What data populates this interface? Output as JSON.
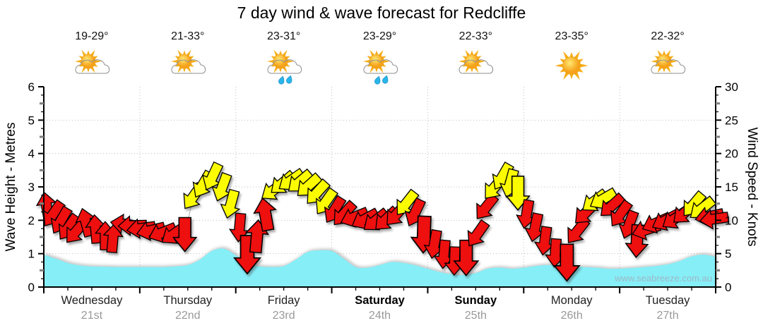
{
  "title": "7 day wind & wave forecast for Redcliffe",
  "watermark": "www.seabreeze.com.au",
  "axes": {
    "left_label": "Wave Height - Metres",
    "right_label": "Wind Speed - Knots",
    "left_ticks": [
      0,
      1,
      2,
      3,
      4,
      5,
      6
    ],
    "right_ticks": [
      0,
      5,
      10,
      15,
      20,
      25,
      30
    ]
  },
  "days": [
    {
      "name": "Wednesday",
      "date": "21st",
      "temp": "19-29°",
      "icon": "partly-cloudy",
      "weekend": false
    },
    {
      "name": "Thursday",
      "date": "22nd",
      "temp": "21-33°",
      "icon": "partly-cloudy",
      "weekend": false
    },
    {
      "name": "Friday",
      "date": "23rd",
      "temp": "23-31°",
      "icon": "showers",
      "weekend": false
    },
    {
      "name": "Saturday",
      "date": "24th",
      "temp": "23-29°",
      "icon": "showers",
      "weekend": true
    },
    {
      "name": "Sunday",
      "date": "25th",
      "temp": "22-33°",
      "icon": "partly-cloudy",
      "weekend": true
    },
    {
      "name": "Monday",
      "date": "26th",
      "temp": "23-35°",
      "icon": "sunny",
      "weekend": false
    },
    {
      "name": "Tuesday",
      "date": "27th",
      "temp": "22-32°",
      "icon": "partly-cloudy",
      "weekend": false
    }
  ],
  "colors": {
    "wave": "#86EEF7",
    "arrow_red": "#EE0F0F",
    "arrow_yellow": "#FCFC00",
    "grid": "#BFBFBF",
    "date_text": "#999999",
    "watermark_text": "#9FB3C0"
  },
  "chart_data": {
    "type": "area+wind-arrows",
    "title": "7 day wind & wave forecast for Redcliffe",
    "x_days": [
      "Wednesday",
      "Thursday",
      "Friday",
      "Saturday",
      "Sunday",
      "Monday",
      "Tuesday"
    ],
    "y_left": {
      "label": "Wave Height - Metres",
      "min": 0,
      "max": 6,
      "tick_step": 1
    },
    "y_right": {
      "label": "Wind Speed - Knots",
      "min": 0,
      "max": 30,
      "tick_step": 5
    },
    "grid": {
      "h_lines_metres": [
        1,
        2,
        3,
        4,
        5
      ],
      "v_lines_at_day_boundaries": true
    },
    "wave_height_m": {
      "interval_days": 0.125,
      "values": [
        0.97,
        0.85,
        0.72,
        0.65,
        0.62,
        0.61,
        0.6,
        0.6,
        0.6,
        0.6,
        0.6,
        0.62,
        0.66,
        0.82,
        1.08,
        1.15,
        0.95,
        0.7,
        0.62,
        0.6,
        0.63,
        0.82,
        1.05,
        1.1,
        1.08,
        0.85,
        0.6,
        0.58,
        0.66,
        0.75,
        0.72,
        0.65,
        0.55,
        0.45,
        0.38,
        0.36,
        0.42,
        0.55,
        0.58,
        0.55,
        0.58,
        0.63,
        0.66,
        0.64,
        0.62,
        0.6,
        0.58,
        0.55,
        0.55,
        0.57,
        0.6,
        0.63,
        0.68,
        0.78,
        0.92,
        0.97,
        0.9
      ]
    },
    "wind_arrows": {
      "format": "[time_days, knots, pointing_dir_deg(0=up,90=right), color, scale(optional)]",
      "points": [
        [
          0.03,
          12.0,
          350,
          "red"
        ],
        [
          0.1,
          11.0,
          215,
          "red"
        ],
        [
          0.18,
          10.0,
          210,
          "red"
        ],
        [
          0.26,
          9.0,
          215,
          "red"
        ],
        [
          0.34,
          8.4,
          220,
          "red"
        ],
        [
          0.44,
          9.6,
          345,
          "red"
        ],
        [
          0.54,
          8.6,
          355,
          "red"
        ],
        [
          0.64,
          7.6,
          0,
          "red"
        ],
        [
          0.72,
          7.2,
          5,
          "red"
        ],
        [
          0.85,
          9.4,
          278,
          "red"
        ],
        [
          0.93,
          9.2,
          268,
          "red"
        ],
        [
          1.02,
          8.8,
          262,
          "red"
        ],
        [
          1.12,
          8.5,
          256,
          "red"
        ],
        [
          1.24,
          8.2,
          248,
          "red"
        ],
        [
          1.36,
          8.0,
          235,
          "red"
        ],
        [
          1.47,
          8.0,
          180,
          "red",
          1.2
        ],
        [
          1.56,
          13.6,
          215,
          "yellow"
        ],
        [
          1.66,
          15.4,
          210,
          "yellow"
        ],
        [
          1.76,
          16.6,
          205,
          "yellow"
        ],
        [
          1.86,
          15.0,
          200,
          "yellow"
        ],
        [
          1.95,
          12.5,
          195,
          "yellow"
        ],
        [
          2.04,
          9.0,
          185,
          "red"
        ],
        [
          2.12,
          5.0,
          180,
          "red",
          1.35
        ],
        [
          2.22,
          7.5,
          5,
          "red",
          1.15
        ],
        [
          2.31,
          10.8,
          350,
          "red",
          1.15
        ],
        [
          2.4,
          14.6,
          235,
          "yellow"
        ],
        [
          2.49,
          15.6,
          230,
          "yellow"
        ],
        [
          2.58,
          16.0,
          235,
          "yellow"
        ],
        [
          2.67,
          15.8,
          230,
          "yellow"
        ],
        [
          2.76,
          15.2,
          228,
          "yellow"
        ],
        [
          2.85,
          14.2,
          222,
          "yellow"
        ],
        [
          2.94,
          12.8,
          215,
          "yellow"
        ],
        [
          3.03,
          11.6,
          212,
          "red"
        ],
        [
          3.13,
          11.0,
          222,
          "red"
        ],
        [
          3.24,
          10.5,
          248,
          "red"
        ],
        [
          3.35,
          10.2,
          242,
          "red"
        ],
        [
          3.46,
          10.0,
          232,
          "red"
        ],
        [
          3.57,
          10.2,
          226,
          "red"
        ],
        [
          3.68,
          11.0,
          222,
          "red"
        ],
        [
          3.78,
          12.6,
          218,
          "yellow"
        ],
        [
          3.87,
          11.2,
          205,
          "red"
        ],
        [
          3.96,
          8.0,
          182,
          "red",
          1.3
        ],
        [
          4.07,
          6.5,
          190,
          "red"
        ],
        [
          4.17,
          5.0,
          185,
          "red"
        ],
        [
          4.28,
          4.0,
          182,
          "red"
        ],
        [
          4.4,
          4.5,
          180,
          "red",
          1.25
        ],
        [
          4.52,
          8.0,
          215,
          "red"
        ],
        [
          4.61,
          12.0,
          218,
          "red"
        ],
        [
          4.7,
          15.0,
          220,
          "yellow"
        ],
        [
          4.78,
          16.6,
          210,
          "yellow"
        ],
        [
          4.86,
          15.6,
          195,
          "yellow"
        ],
        [
          4.94,
          14.2,
          180,
          "yellow",
          1.2
        ],
        [
          5.03,
          11.0,
          190,
          "red"
        ],
        [
          5.12,
          9.0,
          192,
          "red"
        ],
        [
          5.22,
          7.0,
          188,
          "red"
        ],
        [
          5.33,
          5.2,
          184,
          "red"
        ],
        [
          5.45,
          3.8,
          180,
          "red",
          1.3
        ],
        [
          5.56,
          8.4,
          218,
          "red"
        ],
        [
          5.65,
          11.2,
          225,
          "red"
        ],
        [
          5.74,
          12.9,
          233,
          "yellow"
        ],
        [
          5.83,
          13.2,
          240,
          "yellow"
        ],
        [
          5.92,
          12.2,
          228,
          "red"
        ],
        [
          6.01,
          11.0,
          215,
          "red"
        ],
        [
          6.1,
          9.4,
          200,
          "red"
        ],
        [
          6.18,
          7.0,
          183,
          "red",
          1.15
        ],
        [
          6.28,
          8.6,
          252,
          "red"
        ],
        [
          6.38,
          9.6,
          246,
          "red"
        ],
        [
          6.48,
          10.0,
          242,
          "red"
        ],
        [
          6.58,
          10.3,
          236,
          "red"
        ],
        [
          6.68,
          11.2,
          228,
          "red"
        ],
        [
          6.77,
          12.4,
          220,
          "yellow"
        ],
        [
          6.86,
          11.8,
          232,
          "yellow"
        ],
        [
          6.94,
          10.6,
          258,
          "red"
        ],
        [
          6.99,
          10.2,
          262,
          "red"
        ]
      ]
    }
  }
}
